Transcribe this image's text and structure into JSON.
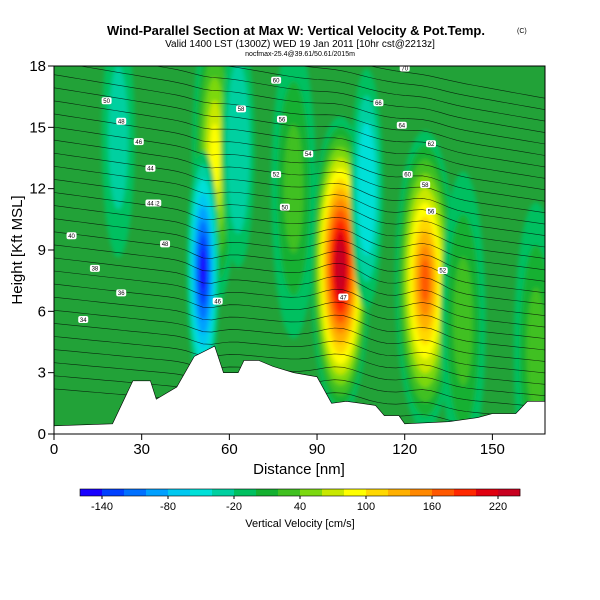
{
  "header": {
    "title": "Wind-Parallel Section at Max W: Vertical Velocity & Pot.Temp.",
    "copyright": "(C)",
    "valid_line": "Valid 1400 LST (1300Z) WED 19 Jan 2011 [10hr cst@2213z]",
    "tiny_line": "nocfmax-25.4@39.61/50.61/2015m"
  },
  "chart_data": {
    "type": "heatmap",
    "xlabel": "Distance [nm]",
    "ylabel": "Height [Kft MSL]",
    "xlim": [
      0,
      168
    ],
    "ylim": [
      0,
      18
    ],
    "x_ticks": [
      0,
      30,
      60,
      90,
      120,
      150
    ],
    "y_ticks": [
      0,
      3,
      6,
      9,
      12,
      15,
      18
    ],
    "field": "Vertical Velocity",
    "colorbar": {
      "label": "Vertical Velocity [cm/s]",
      "ticks": [
        -140,
        -80,
        -20,
        40,
        100,
        160,
        220
      ],
      "range": [
        -160,
        240
      ],
      "colors": [
        "#1800ff",
        "#0040ff",
        "#0070ff",
        "#00a0ff",
        "#00c8f0",
        "#00e0d8",
        "#00d0a0",
        "#00c060",
        "#14b030",
        "#40c020",
        "#7cd810",
        "#c8e800",
        "#ffff00",
        "#ffd800",
        "#ffb000",
        "#ff8800",
        "#ff5800",
        "#ff2800",
        "#e00010",
        "#c80020"
      ],
      "position": "bottom"
    },
    "background_value": -10,
    "updraft_cores": [
      {
        "x": 98,
        "z": 8.2,
        "peak": 235
      },
      {
        "x": 127,
        "z": 7.5,
        "peak": 160
      },
      {
        "x": 55,
        "z": 13.5,
        "peak": 80
      },
      {
        "x": 82,
        "z": 12.0,
        "peak": 30
      },
      {
        "x": 140,
        "z": 5.5,
        "peak": 30
      },
      {
        "x": 165,
        "z": 4.0,
        "peak": 20
      }
    ],
    "downdraft_cores": [
      {
        "x": 51,
        "z": 8.0,
        "peak": -150
      },
      {
        "x": 107,
        "z": 12.0,
        "peak": -60
      },
      {
        "x": 63,
        "z": 14.0,
        "peak": -40
      },
      {
        "x": 22,
        "z": 14.5,
        "peak": -30
      }
    ],
    "terrain_kft": [
      [
        0,
        0.4
      ],
      [
        20,
        0.5
      ],
      [
        27,
        2.6
      ],
      [
        33,
        2.6
      ],
      [
        35,
        1.7
      ],
      [
        42,
        2.3
      ],
      [
        48,
        3.8
      ],
      [
        55,
        4.3
      ],
      [
        58,
        3.0
      ],
      [
        63,
        3.0
      ],
      [
        65,
        3.6
      ],
      [
        70,
        3.6
      ],
      [
        75,
        3.3
      ],
      [
        82,
        3.0
      ],
      [
        90,
        2.8
      ],
      [
        95,
        1.5
      ],
      [
        100,
        1.6
      ],
      [
        105,
        1.5
      ],
      [
        110,
        1.4
      ],
      [
        113,
        0.9
      ],
      [
        118,
        0.9
      ],
      [
        120,
        0.5
      ],
      [
        135,
        0.6
      ],
      [
        145,
        0.8
      ],
      [
        150,
        1.0
      ],
      [
        158,
        1.0
      ],
      [
        162,
        1.6
      ],
      [
        168,
        1.6
      ]
    ],
    "theta_labels": [
      {
        "x": 18,
        "z": 16.3,
        "text": "50"
      },
      {
        "x": 23,
        "z": 15.3,
        "text": "48"
      },
      {
        "x": 29,
        "z": 14.3,
        "text": "46"
      },
      {
        "x": 33,
        "z": 13.0,
        "text": "44"
      },
      {
        "x": 35,
        "z": 11.3,
        "text": "42"
      },
      {
        "x": 6,
        "z": 9.7,
        "text": "40"
      },
      {
        "x": 14,
        "z": 8.1,
        "text": "38"
      },
      {
        "x": 23,
        "z": 6.9,
        "text": "36"
      },
      {
        "x": 10,
        "z": 5.6,
        "text": "34"
      },
      {
        "x": 33,
        "z": 11.3,
        "text": "44"
      },
      {
        "x": 64,
        "z": 15.9,
        "text": "58"
      },
      {
        "x": 76,
        "z": 17.3,
        "text": "60"
      },
      {
        "x": 78,
        "z": 15.4,
        "text": "56"
      },
      {
        "x": 87,
        "z": 13.7,
        "text": "54"
      },
      {
        "x": 76,
        "z": 12.7,
        "text": "52"
      },
      {
        "x": 79,
        "z": 11.1,
        "text": "50"
      },
      {
        "x": 38,
        "z": 9.3,
        "text": "48"
      },
      {
        "x": 56,
        "z": 6.5,
        "text": "46"
      },
      {
        "x": 99,
        "z": 6.7,
        "text": "47"
      },
      {
        "x": 111,
        "z": 16.2,
        "text": "66"
      },
      {
        "x": 120,
        "z": 17.9,
        "text": "70"
      },
      {
        "x": 119,
        "z": 15.1,
        "text": "64"
      },
      {
        "x": 129,
        "z": 14.2,
        "text": "62"
      },
      {
        "x": 121,
        "z": 12.7,
        "text": "60"
      },
      {
        "x": 127,
        "z": 12.2,
        "text": "58"
      },
      {
        "x": 129,
        "z": 10.9,
        "text": "56"
      },
      {
        "x": 133,
        "z": 8.0,
        "text": "52"
      }
    ]
  },
  "colors": {
    "background_field": "#22a238",
    "contour": "#000000",
    "terrain": "#ffffff"
  }
}
